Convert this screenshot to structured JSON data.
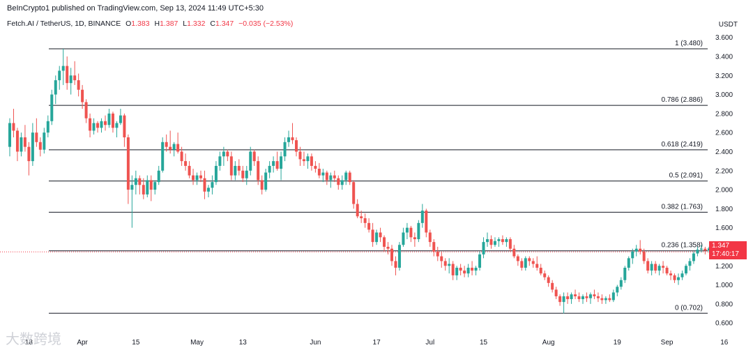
{
  "header": {
    "publisher": "BeInCrypto1 published on TradingView.com, Sep 13, 2024 11:49 UTC+5:30",
    "symbol": "Fetch.AI / TetherUS, 1D, BINANCE",
    "o_label": "O",
    "o_value": "1.383",
    "h_label": "H",
    "h_value": "1.387",
    "l_label": "L",
    "l_value": "1.332",
    "c_label": "C",
    "c_value": "1.347",
    "change": "−0.035 (−2.53%)"
  },
  "price_tag": {
    "price": "1.347",
    "countdown": "17:40:17"
  },
  "watermark": "大数跨境",
  "colors": {
    "up": "#26a69a",
    "down": "#ef5350",
    "fib": "#131722",
    "tag": "#f23645"
  },
  "chart_data": {
    "type": "candlestick",
    "currency": "USDT",
    "ylim": [
      0.55,
      3.7
    ],
    "y_ticks": [
      "0.600",
      "0.800",
      "1.000",
      "1.200",
      "1.400",
      "1.600",
      "1.800",
      "2.000",
      "2.200",
      "2.400",
      "2.600",
      "2.800",
      "3.000",
      "3.200",
      "3.400",
      "3.600"
    ],
    "x_ticks": [
      {
        "label": "18",
        "date": "2024-03-18"
      },
      {
        "label": "Apr",
        "date": "2024-04-01"
      },
      {
        "label": "15",
        "date": "2024-04-15"
      },
      {
        "label": "May",
        "date": "2024-05-01"
      },
      {
        "label": "13",
        "date": "2024-05-13"
      },
      {
        "label": "Jun",
        "date": "2024-06-01"
      },
      {
        "label": "17",
        "date": "2024-06-17"
      },
      {
        "label": "Jul",
        "date": "2024-07-01"
      },
      {
        "label": "15",
        "date": "2024-07-15"
      },
      {
        "label": "Aug",
        "date": "2024-08-01"
      },
      {
        "label": "19",
        "date": "2024-08-19"
      },
      {
        "label": "Sep",
        "date": "2024-09-01"
      },
      {
        "label": "16",
        "date": "2024-09-16"
      }
    ],
    "fib_levels": [
      {
        "label": "1 (3.480)",
        "value": 3.48
      },
      {
        "label": "0.786 (2.886)",
        "value": 2.886
      },
      {
        "label": "0.618 (2.419)",
        "value": 2.419
      },
      {
        "label": "0.5 (2.091)",
        "value": 2.091
      },
      {
        "label": "0.382 (1.763)",
        "value": 1.763
      },
      {
        "label": "0.236 (1.358)",
        "value": 1.358
      },
      {
        "label": "0 (0.702)",
        "value": 0.702
      }
    ],
    "last_price": 1.347,
    "candles": [
      [
        "2024-03-13",
        2.45,
        2.75,
        2.35,
        2.7
      ],
      [
        "2024-03-14",
        2.7,
        2.85,
        2.55,
        2.62
      ],
      [
        "2024-03-15",
        2.62,
        2.65,
        2.3,
        2.4
      ],
      [
        "2024-03-16",
        2.4,
        2.6,
        2.35,
        2.55
      ],
      [
        "2024-03-17",
        2.55,
        2.68,
        2.4,
        2.45
      ],
      [
        "2024-03-18",
        2.45,
        2.5,
        2.15,
        2.3
      ],
      [
        "2024-03-19",
        2.3,
        2.7,
        2.25,
        2.6
      ],
      [
        "2024-03-20",
        2.6,
        2.75,
        2.45,
        2.5
      ],
      [
        "2024-03-21",
        2.5,
        2.55,
        2.35,
        2.42
      ],
      [
        "2024-03-22",
        2.42,
        2.65,
        2.38,
        2.6
      ],
      [
        "2024-03-23",
        2.6,
        2.78,
        2.55,
        2.72
      ],
      [
        "2024-03-24",
        2.72,
        3.05,
        2.68,
        3.0
      ],
      [
        "2024-03-25",
        3.0,
        3.2,
        2.9,
        3.15
      ],
      [
        "2024-03-26",
        3.15,
        3.3,
        3.05,
        3.25
      ],
      [
        "2024-03-27",
        3.25,
        3.48,
        3.1,
        3.3
      ],
      [
        "2024-03-28",
        3.3,
        3.4,
        3.05,
        3.12
      ],
      [
        "2024-03-29",
        3.12,
        3.28,
        3.0,
        3.2
      ],
      [
        "2024-03-30",
        3.2,
        3.35,
        3.1,
        3.15
      ],
      [
        "2024-03-31",
        3.15,
        3.22,
        2.98,
        3.05
      ],
      [
        "2024-04-01",
        3.05,
        3.1,
        2.85,
        2.92
      ],
      [
        "2024-04-02",
        2.92,
        2.95,
        2.7,
        2.75
      ],
      [
        "2024-04-03",
        2.75,
        2.8,
        2.55,
        2.62
      ],
      [
        "2024-04-04",
        2.62,
        2.75,
        2.58,
        2.7
      ],
      [
        "2024-04-05",
        2.7,
        2.72,
        2.6,
        2.65
      ],
      [
        "2024-04-06",
        2.65,
        2.75,
        2.6,
        2.72
      ],
      [
        "2024-04-07",
        2.72,
        2.78,
        2.62,
        2.68
      ],
      [
        "2024-04-08",
        2.68,
        2.85,
        2.65,
        2.8
      ],
      [
        "2024-04-09",
        2.8,
        2.82,
        2.6,
        2.65
      ],
      [
        "2024-04-10",
        2.65,
        2.72,
        2.55,
        2.7
      ],
      [
        "2024-04-11",
        2.7,
        2.85,
        2.68,
        2.78
      ],
      [
        "2024-04-12",
        2.78,
        2.8,
        2.45,
        2.55
      ],
      [
        "2024-04-13",
        2.55,
        2.58,
        1.85,
        2.0
      ],
      [
        "2024-04-14",
        2.0,
        2.15,
        1.6,
        2.05
      ],
      [
        "2024-04-15",
        2.05,
        2.2,
        1.95,
        2.12
      ],
      [
        "2024-04-16",
        2.12,
        2.15,
        1.95,
        2.05
      ],
      [
        "2024-04-17",
        2.05,
        2.12,
        1.9,
        1.95
      ],
      [
        "2024-04-18",
        1.95,
        2.15,
        1.92,
        2.1
      ],
      [
        "2024-04-19",
        2.1,
        2.15,
        1.88,
        2.0
      ],
      [
        "2024-04-20",
        2.0,
        2.1,
        1.95,
        2.08
      ],
      [
        "2024-04-21",
        2.08,
        2.25,
        2.05,
        2.2
      ],
      [
        "2024-04-22",
        2.2,
        2.55,
        2.18,
        2.5
      ],
      [
        "2024-04-23",
        2.5,
        2.58,
        2.4,
        2.45
      ],
      [
        "2024-04-24",
        2.45,
        2.62,
        2.38,
        2.42
      ],
      [
        "2024-04-25",
        2.42,
        2.5,
        2.35,
        2.48
      ],
      [
        "2024-04-26",
        2.48,
        2.6,
        2.38,
        2.4
      ],
      [
        "2024-04-27",
        2.4,
        2.45,
        2.25,
        2.3
      ],
      [
        "2024-04-28",
        2.3,
        2.38,
        2.2,
        2.25
      ],
      [
        "2024-04-29",
        2.25,
        2.3,
        2.12,
        2.15
      ],
      [
        "2024-04-30",
        2.15,
        2.22,
        2.05,
        2.1
      ],
      [
        "2024-05-01",
        2.1,
        2.18,
        2.05,
        2.15
      ],
      [
        "2024-05-02",
        2.15,
        2.2,
        2.08,
        2.12
      ],
      [
        "2024-05-03",
        2.12,
        2.2,
        1.9,
        1.98
      ],
      [
        "2024-05-04",
        1.98,
        2.05,
        1.92,
        2.02
      ],
      [
        "2024-05-05",
        2.02,
        2.15,
        1.95,
        2.08
      ],
      [
        "2024-05-06",
        2.08,
        2.3,
        2.05,
        2.25
      ],
      [
        "2024-05-07",
        2.25,
        2.4,
        2.2,
        2.35
      ],
      [
        "2024-05-08",
        2.35,
        2.45,
        2.25,
        2.4
      ],
      [
        "2024-05-09",
        2.4,
        2.42,
        2.3,
        2.35
      ],
      [
        "2024-05-10",
        2.35,
        2.4,
        2.1,
        2.15
      ],
      [
        "2024-05-11",
        2.15,
        2.3,
        2.1,
        2.25
      ],
      [
        "2024-05-12",
        2.25,
        2.32,
        2.15,
        2.2
      ],
      [
        "2024-05-13",
        2.2,
        2.25,
        2.08,
        2.12
      ],
      [
        "2024-05-14",
        2.12,
        2.25,
        2.05,
        2.2
      ],
      [
        "2024-05-15",
        2.2,
        2.45,
        2.15,
        2.4
      ],
      [
        "2024-05-16",
        2.4,
        2.42,
        2.25,
        2.3
      ],
      [
        "2024-05-17",
        2.3,
        2.35,
        2.05,
        2.1
      ],
      [
        "2024-05-18",
        2.1,
        2.15,
        1.95,
        2.0
      ],
      [
        "2024-05-19",
        2.0,
        2.22,
        1.98,
        2.18
      ],
      [
        "2024-05-20",
        2.18,
        2.3,
        2.12,
        2.25
      ],
      [
        "2024-05-21",
        2.25,
        2.35,
        2.18,
        2.3
      ],
      [
        "2024-05-22",
        2.3,
        2.4,
        2.2,
        2.22
      ],
      [
        "2024-05-23",
        2.22,
        2.4,
        2.1,
        2.35
      ],
      [
        "2024-05-24",
        2.35,
        2.55,
        2.3,
        2.5
      ],
      [
        "2024-05-25",
        2.5,
        2.62,
        2.45,
        2.55
      ],
      [
        "2024-05-26",
        2.55,
        2.7,
        2.48,
        2.52
      ],
      [
        "2024-05-27",
        2.52,
        2.55,
        2.35,
        2.4
      ],
      [
        "2024-05-28",
        2.4,
        2.45,
        2.25,
        2.32
      ],
      [
        "2024-05-29",
        2.32,
        2.4,
        2.25,
        2.3
      ],
      [
        "2024-05-30",
        2.3,
        2.38,
        2.22,
        2.35
      ],
      [
        "2024-05-31",
        2.35,
        2.38,
        2.2,
        2.25
      ],
      [
        "2024-06-01",
        2.25,
        2.3,
        2.18,
        2.22
      ],
      [
        "2024-06-02",
        2.22,
        2.28,
        2.12,
        2.15
      ],
      [
        "2024-06-03",
        2.15,
        2.22,
        2.08,
        2.18
      ],
      [
        "2024-06-04",
        2.18,
        2.2,
        2.05,
        2.1
      ],
      [
        "2024-06-05",
        2.1,
        2.18,
        2.02,
        2.15
      ],
      [
        "2024-06-06",
        2.15,
        2.2,
        2.08,
        2.12
      ],
      [
        "2024-06-07",
        2.12,
        2.15,
        2.0,
        2.05
      ],
      [
        "2024-06-08",
        2.05,
        2.15,
        2.0,
        2.1
      ],
      [
        "2024-06-09",
        2.1,
        2.2,
        2.05,
        2.18
      ],
      [
        "2024-06-10",
        2.18,
        2.2,
        2.05,
        2.08
      ],
      [
        "2024-06-11",
        2.08,
        2.1,
        1.8,
        1.85
      ],
      [
        "2024-06-12",
        1.85,
        1.9,
        1.7,
        1.72
      ],
      [
        "2024-06-13",
        1.72,
        1.78,
        1.65,
        1.7
      ],
      [
        "2024-06-14",
        1.7,
        1.75,
        1.6,
        1.65
      ],
      [
        "2024-06-15",
        1.65,
        1.7,
        1.55,
        1.58
      ],
      [
        "2024-06-16",
        1.58,
        1.65,
        1.4,
        1.45
      ],
      [
        "2024-06-17",
        1.45,
        1.58,
        1.42,
        1.55
      ],
      [
        "2024-06-18",
        1.55,
        1.6,
        1.45,
        1.5
      ],
      [
        "2024-06-19",
        1.5,
        1.52,
        1.35,
        1.4
      ],
      [
        "2024-06-20",
        1.4,
        1.45,
        1.32,
        1.38
      ],
      [
        "2024-06-21",
        1.38,
        1.42,
        1.2,
        1.25
      ],
      [
        "2024-06-22",
        1.25,
        1.3,
        1.1,
        1.18
      ],
      [
        "2024-06-23",
        1.18,
        1.45,
        1.15,
        1.42
      ],
      [
        "2024-06-24",
        1.42,
        1.6,
        1.4,
        1.55
      ],
      [
        "2024-06-25",
        1.55,
        1.65,
        1.48,
        1.6
      ],
      [
        "2024-06-26",
        1.6,
        1.62,
        1.45,
        1.5
      ],
      [
        "2024-06-27",
        1.5,
        1.55,
        1.4,
        1.48
      ],
      [
        "2024-06-28",
        1.48,
        1.68,
        1.45,
        1.65
      ],
      [
        "2024-06-29",
        1.65,
        1.85,
        1.6,
        1.78
      ],
      [
        "2024-06-30",
        1.78,
        1.8,
        1.5,
        1.55
      ],
      [
        "2024-07-01",
        1.55,
        1.58,
        1.4,
        1.45
      ],
      [
        "2024-07-02",
        1.45,
        1.48,
        1.3,
        1.35
      ],
      [
        "2024-07-03",
        1.35,
        1.4,
        1.25,
        1.3
      ],
      [
        "2024-07-04",
        1.3,
        1.35,
        1.18,
        1.25
      ],
      [
        "2024-07-05",
        1.25,
        1.28,
        1.15,
        1.2
      ],
      [
        "2024-07-06",
        1.2,
        1.28,
        1.12,
        1.22
      ],
      [
        "2024-07-07",
        1.22,
        1.25,
        1.05,
        1.1
      ],
      [
        "2024-07-08",
        1.1,
        1.2,
        1.05,
        1.18
      ],
      [
        "2024-07-09",
        1.18,
        1.22,
        1.1,
        1.15
      ],
      [
        "2024-07-10",
        1.15,
        1.2,
        1.08,
        1.12
      ],
      [
        "2024-07-11",
        1.12,
        1.22,
        1.08,
        1.18
      ],
      [
        "2024-07-12",
        1.18,
        1.25,
        1.1,
        1.15
      ],
      [
        "2024-07-13",
        1.15,
        1.2,
        1.1,
        1.18
      ],
      [
        "2024-07-14",
        1.18,
        1.35,
        1.15,
        1.32
      ],
      [
        "2024-07-15",
        1.32,
        1.5,
        1.28,
        1.45
      ],
      [
        "2024-07-16",
        1.45,
        1.55,
        1.4,
        1.48
      ],
      [
        "2024-07-17",
        1.48,
        1.52,
        1.38,
        1.42
      ],
      [
        "2024-07-18",
        1.42,
        1.5,
        1.4,
        1.46
      ],
      [
        "2024-07-19",
        1.46,
        1.5,
        1.4,
        1.48
      ],
      [
        "2024-07-20",
        1.48,
        1.52,
        1.42,
        1.45
      ],
      [
        "2024-07-21",
        1.45,
        1.5,
        1.4,
        1.48
      ],
      [
        "2024-07-22",
        1.48,
        1.5,
        1.35,
        1.38
      ],
      [
        "2024-07-23",
        1.38,
        1.42,
        1.28,
        1.3
      ],
      [
        "2024-07-24",
        1.3,
        1.32,
        1.2,
        1.25
      ],
      [
        "2024-07-25",
        1.25,
        1.28,
        1.15,
        1.18
      ],
      [
        "2024-07-26",
        1.18,
        1.3,
        1.15,
        1.28
      ],
      [
        "2024-07-27",
        1.28,
        1.3,
        1.2,
        1.25
      ],
      [
        "2024-07-28",
        1.25,
        1.28,
        1.18,
        1.22
      ],
      [
        "2024-07-29",
        1.22,
        1.3,
        1.15,
        1.18
      ],
      [
        "2024-07-30",
        1.18,
        1.22,
        1.1,
        1.12
      ],
      [
        "2024-07-31",
        1.12,
        1.15,
        1.05,
        1.08
      ],
      [
        "2024-08-01",
        1.08,
        1.1,
        0.98,
        1.02
      ],
      [
        "2024-08-02",
        1.02,
        1.05,
        0.92,
        0.95
      ],
      [
        "2024-08-03",
        0.95,
        0.98,
        0.85,
        0.88
      ],
      [
        "2024-08-04",
        0.88,
        0.9,
        0.78,
        0.82
      ],
      [
        "2024-08-05",
        0.82,
        0.92,
        0.7,
        0.88
      ],
      [
        "2024-08-06",
        0.88,
        0.92,
        0.8,
        0.85
      ],
      [
        "2024-08-07",
        0.85,
        0.92,
        0.8,
        0.9
      ],
      [
        "2024-08-08",
        0.9,
        0.95,
        0.85,
        0.88
      ],
      [
        "2024-08-09",
        0.88,
        0.92,
        0.82,
        0.85
      ],
      [
        "2024-08-10",
        0.85,
        0.9,
        0.8,
        0.88
      ],
      [
        "2024-08-11",
        0.88,
        0.92,
        0.82,
        0.86
      ],
      [
        "2024-08-12",
        0.86,
        0.92,
        0.8,
        0.9
      ],
      [
        "2024-08-13",
        0.9,
        0.95,
        0.85,
        0.88
      ],
      [
        "2024-08-14",
        0.88,
        0.92,
        0.82,
        0.86
      ],
      [
        "2024-08-15",
        0.86,
        0.9,
        0.8,
        0.84
      ],
      [
        "2024-08-16",
        0.84,
        0.88,
        0.8,
        0.86
      ],
      [
        "2024-08-17",
        0.86,
        0.9,
        0.82,
        0.84
      ],
      [
        "2024-08-18",
        0.84,
        0.95,
        0.82,
        0.92
      ],
      [
        "2024-08-19",
        0.92,
        1.0,
        0.88,
        0.98
      ],
      [
        "2024-08-20",
        0.98,
        1.08,
        0.95,
        1.05
      ],
      [
        "2024-08-21",
        1.05,
        1.2,
        1.02,
        1.18
      ],
      [
        "2024-08-22",
        1.18,
        1.3,
        1.15,
        1.28
      ],
      [
        "2024-08-23",
        1.28,
        1.38,
        1.22,
        1.35
      ],
      [
        "2024-08-24",
        1.35,
        1.42,
        1.3,
        1.38
      ],
      [
        "2024-08-25",
        1.38,
        1.47,
        1.32,
        1.35
      ],
      [
        "2024-08-26",
        1.35,
        1.38,
        1.22,
        1.25
      ],
      [
        "2024-08-27",
        1.25,
        1.28,
        1.12,
        1.15
      ],
      [
        "2024-08-28",
        1.15,
        1.25,
        1.1,
        1.22
      ],
      [
        "2024-08-29",
        1.22,
        1.25,
        1.12,
        1.15
      ],
      [
        "2024-08-30",
        1.15,
        1.22,
        1.1,
        1.2
      ],
      [
        "2024-08-31",
        1.2,
        1.25,
        1.12,
        1.18
      ],
      [
        "2024-09-01",
        1.18,
        1.2,
        1.1,
        1.12
      ],
      [
        "2024-09-02",
        1.12,
        1.15,
        1.05,
        1.1
      ],
      [
        "2024-09-03",
        1.1,
        1.12,
        1.02,
        1.05
      ],
      [
        "2024-09-04",
        1.05,
        1.12,
        1.0,
        1.08
      ],
      [
        "2024-09-05",
        1.08,
        1.15,
        1.05,
        1.12
      ],
      [
        "2024-09-06",
        1.12,
        1.22,
        1.1,
        1.2
      ],
      [
        "2024-09-07",
        1.2,
        1.28,
        1.15,
        1.25
      ],
      [
        "2024-09-08",
        1.25,
        1.35,
        1.22,
        1.33
      ],
      [
        "2024-09-09",
        1.33,
        1.4,
        1.3,
        1.37
      ],
      [
        "2024-09-10",
        1.37,
        1.42,
        1.34,
        1.38
      ],
      [
        "2024-09-11",
        1.38,
        1.4,
        1.32,
        1.36
      ],
      [
        "2024-09-12",
        1.36,
        1.4,
        1.34,
        1.383
      ],
      [
        "2024-09-13",
        1.383,
        1.387,
        1.332,
        1.347
      ]
    ]
  }
}
